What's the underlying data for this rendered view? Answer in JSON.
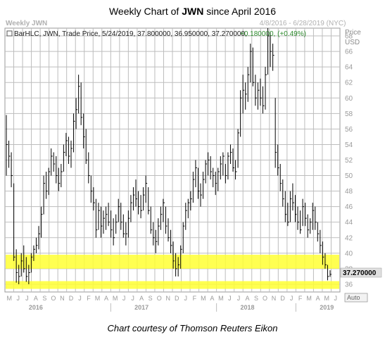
{
  "title": {
    "prefix": "Weekly Chart of ",
    "ticker": "JWN",
    "suffix": " since April 2016"
  },
  "chart_header": {
    "watermark": "Weekly JWN",
    "date_range": "4/8/2016 - 6/28/2019 (NYC)",
    "legend": "BarHLC, JWN, Trade Price, 5/24/2019, 37.800000, 36.950000, 37.270000,",
    "change": "+0.180000, (+0.49%)",
    "price_label": "Price",
    "currency_label": "USD",
    "last_price": "37.270000",
    "auto_label": "Auto"
  },
  "footer": "Chart courtesy of Thomson Reuters Eikon",
  "colors": {
    "up_change": "#2e8b2e",
    "highlight": "#ffff33",
    "bars": "#000000",
    "last_price_bg": "#e0e0e0"
  },
  "chart_data": {
    "type": "bar",
    "style": "BarHLC",
    "ylim": [
      35,
      69
    ],
    "y_ticks": [
      36,
      38,
      40,
      42,
      44,
      46,
      48,
      50,
      52,
      54,
      56,
      58,
      60,
      62,
      64,
      66,
      68
    ],
    "month_labels": [
      "M",
      "J",
      "J",
      "A",
      "S",
      "O",
      "N",
      "D",
      "J",
      "F",
      "M",
      "A",
      "M",
      "J",
      "J",
      "A",
      "S",
      "O",
      "N",
      "D",
      "J",
      "F",
      "M",
      "A",
      "M",
      "J",
      "J",
      "A",
      "S",
      "O",
      "N",
      "D",
      "J",
      "F",
      "M",
      "A",
      "M",
      "J"
    ],
    "year_labels": [
      {
        "label": "2016",
        "month_index": 3
      },
      {
        "label": "2017",
        "month_index": 15
      },
      {
        "label": "2018",
        "month_index": 27
      },
      {
        "label": "2019",
        "month_index": 36
      }
    ],
    "support_zones": [
      [
        38.0,
        39.8
      ],
      [
        35.4,
        36.4
      ]
    ],
    "series": [
      {
        "values": [
          [
            57.8,
            50.0,
            54.0
          ],
          [
            54.5,
            51.0,
            52.5
          ],
          [
            53.0,
            48.5,
            50.0
          ],
          [
            49.0,
            39.0,
            39.5
          ],
          [
            40.5,
            36.2,
            37.5
          ],
          [
            38.5,
            36.0,
            37.0
          ],
          [
            40.0,
            37.0,
            39.0
          ],
          [
            41.0,
            37.5,
            38.0
          ],
          [
            39.5,
            36.3,
            37.0
          ],
          [
            38.5,
            36.0,
            37.5
          ],
          [
            40.0,
            37.5,
            39.5
          ],
          [
            41.0,
            39.0,
            40.5
          ],
          [
            42.0,
            40.0,
            41.0
          ],
          [
            43.5,
            40.5,
            42.5
          ],
          [
            46.0,
            42.0,
            45.0
          ],
          [
            50.0,
            45.0,
            49.0
          ],
          [
            50.5,
            47.0,
            48.0
          ],
          [
            51.0,
            47.5,
            50.5
          ],
          [
            53.5,
            50.0,
            52.5
          ],
          [
            53.0,
            50.5,
            51.5
          ],
          [
            52.5,
            49.0,
            50.0
          ],
          [
            51.0,
            48.0,
            49.0
          ],
          [
            51.5,
            48.5,
            50.5
          ],
          [
            54.0,
            50.5,
            53.0
          ],
          [
            55.5,
            52.5,
            54.5
          ],
          [
            55.0,
            51.5,
            52.5
          ],
          [
            54.5,
            51.0,
            53.5
          ],
          [
            58.0,
            53.0,
            57.0
          ],
          [
            60.0,
            56.0,
            58.5
          ],
          [
            63.0,
            58.0,
            61.5
          ],
          [
            62.0,
            56.5,
            57.5
          ],
          [
            58.0,
            53.5,
            55.0
          ],
          [
            56.0,
            51.5,
            52.0
          ],
          [
            53.0,
            49.0,
            50.0
          ],
          [
            50.0,
            46.5,
            48.0
          ],
          [
            48.5,
            45.5,
            46.5
          ],
          [
            47.0,
            42.0,
            43.0
          ],
          [
            46.5,
            43.0,
            45.5
          ],
          [
            46.0,
            42.0,
            43.5
          ],
          [
            45.5,
            42.5,
            44.5
          ],
          [
            46.0,
            43.0,
            45.0
          ],
          [
            46.5,
            43.5,
            44.0
          ],
          [
            45.5,
            42.0,
            43.0
          ],
          [
            44.5,
            41.0,
            42.0
          ],
          [
            45.0,
            42.5,
            44.0
          ],
          [
            47.0,
            44.0,
            46.0
          ],
          [
            46.5,
            43.0,
            44.0
          ],
          [
            45.0,
            42.0,
            42.5
          ],
          [
            44.0,
            41.0,
            42.5
          ],
          [
            45.5,
            42.0,
            44.5
          ],
          [
            47.5,
            44.0,
            46.5
          ],
          [
            48.5,
            45.5,
            47.5
          ],
          [
            49.5,
            46.0,
            47.0
          ],
          [
            48.0,
            45.0,
            46.0
          ],
          [
            47.5,
            44.5,
            45.5
          ],
          [
            48.5,
            45.5,
            47.5
          ],
          [
            50.0,
            46.5,
            49.0
          ],
          [
            48.5,
            45.0,
            45.5
          ],
          [
            46.0,
            42.5,
            43.0
          ],
          [
            44.0,
            41.0,
            42.0
          ],
          [
            43.0,
            40.0,
            41.5
          ],
          [
            44.5,
            41.0,
            43.5
          ],
          [
            46.0,
            43.0,
            45.0
          ],
          [
            47.0,
            44.0,
            46.5
          ],
          [
            46.0,
            42.5,
            43.5
          ],
          [
            44.5,
            41.5,
            42.0
          ],
          [
            43.0,
            40.0,
            41.0
          ],
          [
            41.5,
            38.0,
            39.0
          ],
          [
            40.0,
            37.0,
            38.0
          ],
          [
            39.5,
            37.0,
            38.5
          ],
          [
            41.0,
            38.0,
            40.5
          ],
          [
            44.0,
            40.0,
            43.5
          ],
          [
            46.5,
            43.0,
            45.5
          ],
          [
            47.0,
            44.5,
            46.5
          ],
          [
            48.0,
            45.5,
            47.0
          ],
          [
            50.5,
            46.5,
            49.5
          ],
          [
            52.0,
            48.5,
            51.0
          ],
          [
            51.0,
            47.0,
            48.0
          ],
          [
            49.0,
            46.0,
            47.5
          ],
          [
            50.5,
            47.0,
            49.5
          ],
          [
            52.0,
            49.0,
            51.5
          ],
          [
            53.0,
            50.0,
            52.0
          ],
          [
            52.5,
            49.5,
            50.5
          ],
          [
            51.0,
            48.5,
            50.0
          ],
          [
            50.5,
            47.5,
            49.0
          ],
          [
            51.0,
            48.0,
            50.5
          ],
          [
            52.5,
            49.5,
            51.5
          ],
          [
            53.0,
            50.0,
            52.5
          ],
          [
            51.5,
            49.0,
            50.0
          ],
          [
            53.0,
            49.5,
            52.5
          ],
          [
            54.0,
            51.5,
            53.0
          ],
          [
            53.5,
            50.5,
            51.0
          ],
          [
            52.0,
            49.5,
            50.5
          ],
          [
            56.0,
            51.0,
            55.5
          ],
          [
            61.0,
            55.0,
            60.0
          ],
          [
            63.0,
            58.0,
            61.0
          ],
          [
            62.0,
            58.5,
            60.5
          ],
          [
            64.0,
            59.5,
            63.0
          ],
          [
            67.0,
            62.0,
            66.0
          ],
          [
            66.5,
            61.5,
            62.0
          ],
          [
            63.0,
            59.0,
            60.0
          ],
          [
            62.0,
            58.5,
            61.0
          ],
          [
            62.5,
            59.0,
            60.0
          ],
          [
            61.5,
            58.0,
            59.0
          ],
          [
            64.0,
            58.5,
            63.0
          ],
          [
            69.0,
            63.0,
            68.0
          ],
          [
            68.5,
            64.0,
            66.0
          ],
          [
            67.0,
            63.5,
            65.5
          ],
          [
            60.0,
            51.0,
            53.0
          ],
          [
            54.0,
            50.0,
            51.0
          ],
          [
            51.5,
            48.0,
            49.0
          ],
          [
            49.5,
            46.0,
            47.0
          ],
          [
            48.0,
            44.0,
            45.0
          ],
          [
            46.5,
            43.5,
            44.0
          ],
          [
            48.0,
            44.0,
            47.0
          ],
          [
            49.0,
            45.5,
            46.5
          ],
          [
            47.5,
            44.0,
            45.0
          ],
          [
            46.0,
            43.0,
            44.0
          ],
          [
            45.5,
            42.5,
            43.0
          ],
          [
            47.0,
            43.5,
            46.0
          ],
          [
            46.5,
            43.5,
            44.5
          ],
          [
            45.0,
            42.0,
            43.0
          ],
          [
            44.5,
            42.5,
            44.0
          ],
          [
            46.5,
            43.0,
            45.5
          ],
          [
            46.0,
            43.0,
            44.0
          ],
          [
            44.0,
            41.5,
            42.5
          ],
          [
            43.0,
            40.0,
            41.0
          ],
          [
            41.5,
            38.5,
            39.5
          ],
          [
            40.0,
            38.0,
            38.5
          ],
          [
            38.5,
            36.5,
            37.0
          ],
          [
            37.8,
            36.95,
            37.27
          ]
        ]
      }
    ]
  }
}
